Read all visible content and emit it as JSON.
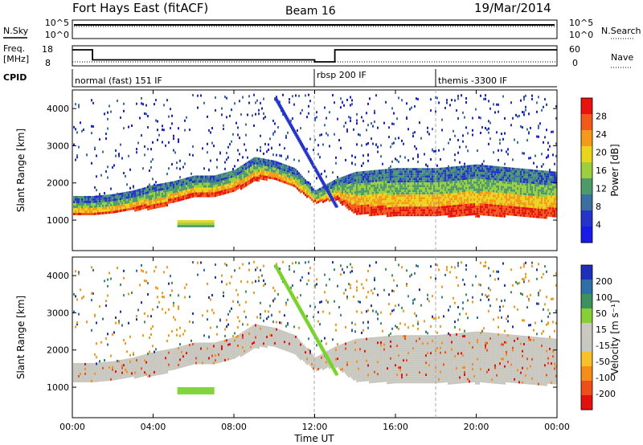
{
  "header": {
    "station": "Fort Hays East (fitACF)",
    "beam": "Beam 16",
    "date": "19/Mar/2014"
  },
  "noise_panel": {
    "left_label": "N.Sky",
    "right_label": "N.Search",
    "left_ticks": [
      "10^5",
      "10^0"
    ],
    "right_ticks": [
      "10^5",
      "10^0"
    ]
  },
  "freq_panel": {
    "left_label_1": "Freq.",
    "left_label_2": "[MHz]",
    "right_label": "Nave",
    "left_ticks": [
      "18",
      "8"
    ],
    "right_ticks": [
      "60",
      "0"
    ]
  },
  "cpid": {
    "label": "CPID",
    "segments": [
      {
        "start_h": 0,
        "label": "normal (fast) 151 IF"
      },
      {
        "start_h": 12.0,
        "label": "rbsp 200 IF"
      },
      {
        "start_h": 18.0,
        "label": "themis -3300 IF"
      }
    ]
  },
  "xaxis": {
    "label": "Time UT",
    "ticks": [
      "00:00",
      "04:00",
      "08:00",
      "12:00",
      "16:00",
      "20:00",
      "00:00"
    ]
  },
  "power_panel": {
    "ylabel": "Slant Range [km]",
    "yticks": [
      "4000",
      "3000",
      "2000",
      "1000"
    ],
    "colorbar_label": "Power [dB]",
    "colorbar_ticks": [
      "28",
      "24",
      "20",
      "16",
      "12",
      "8",
      "4"
    ],
    "colors": [
      "#e8130f",
      "#f15a1a",
      "#f6991a",
      "#e8d51c",
      "#9bcf3d",
      "#4d9a6a",
      "#3b6fa0",
      "#2434c8",
      "#1a1ae6"
    ]
  },
  "velocity_panel": {
    "ylabel": "Slant Range [km]",
    "yticks": [
      "4000",
      "3000",
      "2000",
      "1000"
    ],
    "colorbar_label": "Velocity [m s⁻¹]",
    "colorbar_ticks": [
      "200",
      "100",
      "50",
      "15",
      "-15",
      "-50",
      "-100",
      "-200"
    ],
    "colors": [
      "#1f2fb8",
      "#2f6ea6",
      "#3f9060",
      "#86cf34",
      "#c9c9c0",
      "#c8c8c0",
      "#f6c12a",
      "#f58d1a",
      "#ee4f1a",
      "#e31010"
    ]
  },
  "chart_data": [
    {
      "type": "line",
      "title": "N.Sky / N.Search",
      "x_range_hours": [
        0,
        24
      ],
      "series": [
        {
          "name": "N.Sky",
          "x": [
            0,
            24
          ],
          "y_log10": [
            4.6,
            4.6
          ]
        },
        {
          "name": "N.Search",
          "x": [
            0,
            24
          ],
          "y_log10": [
            4.4,
            4.4
          ]
        }
      ]
    },
    {
      "type": "line",
      "title": "Freq. / Nave",
      "x_range_hours": [
        0,
        24
      ],
      "series": [
        {
          "name": "Freq.",
          "x": [
            0,
            1.0,
            1.0,
            12.0,
            12.0,
            13.0,
            13.0,
            24
          ],
          "y": [
            16,
            16,
            11,
            11,
            10,
            10,
            16,
            16
          ]
        },
        {
          "name": "Nave",
          "x": [
            0,
            24
          ],
          "y": [
            12,
            12
          ]
        }
      ]
    },
    {
      "type": "heatmap",
      "title": "Power [dB]",
      "x_range_hours": [
        0,
        24
      ],
      "ylim_km": [
        180,
        4500
      ],
      "bands": [
        {
          "name": "F-region backscatter",
          "x": [
            0,
            1,
            2,
            3,
            4,
            5,
            6,
            7,
            8,
            9,
            10,
            11,
            12,
            13,
            14,
            16,
            18,
            20,
            22,
            24
          ],
          "bottom": [
            1100,
            1150,
            1200,
            1250,
            1300,
            1450,
            1600,
            1600,
            1750,
            2050,
            2100,
            1850,
            1450,
            1550,
            1150,
            1100,
            1100,
            1100,
            1100,
            1050
          ],
          "top": [
            1650,
            1650,
            1700,
            1800,
            1950,
            2050,
            2200,
            2200,
            2350,
            2700,
            2600,
            2400,
            1800,
            2100,
            2300,
            2400,
            2400,
            2500,
            2400,
            2300
          ],
          "power_db": 22
        }
      ]
    },
    {
      "type": "heatmap",
      "title": "Velocity [m s-1]",
      "x_range_hours": [
        0,
        24
      ],
      "ylim_km": [
        180,
        4500
      ],
      "bands": [
        {
          "name": "Ground scatter",
          "velocity": 0
        },
        {
          "name": "Sporadic echo",
          "x": [
            5.2,
            7.0
          ],
          "range_km": [
            800,
            1000
          ],
          "velocity": 40
        },
        {
          "name": "Streak",
          "x": [
            10,
            13
          ],
          "range_km": [
            4300,
            1400
          ],
          "velocity": 40
        }
      ]
    }
  ]
}
